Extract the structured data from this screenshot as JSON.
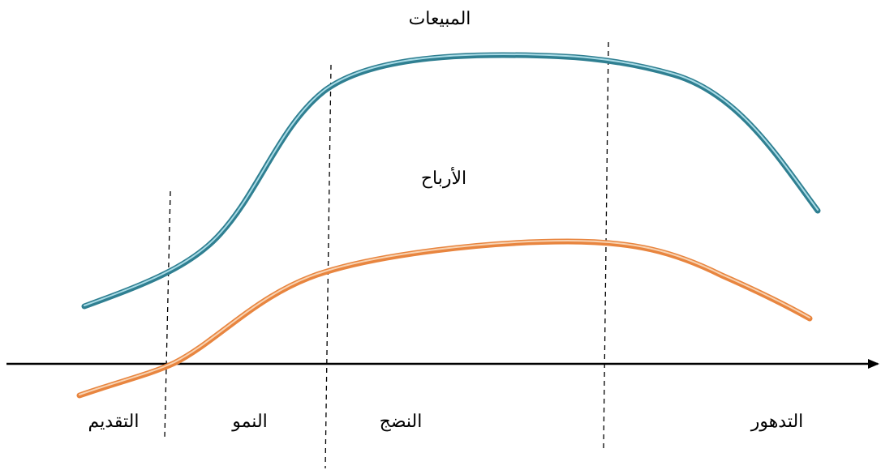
{
  "labels": {
    "sales": "المبيعات",
    "profits": "الأرباح"
  },
  "stages": {
    "introduction": "التقديم",
    "growth": "النمو",
    "maturity": "النضج",
    "decline": "التدهور"
  },
  "colors": {
    "sales_curve": "#2f7f91",
    "sales_highlight": "#a9dbe6",
    "profits_curve": "#e8853f",
    "profits_highlight": "#f8d3b2",
    "axis": "#000000",
    "divider": "#000000"
  }
}
